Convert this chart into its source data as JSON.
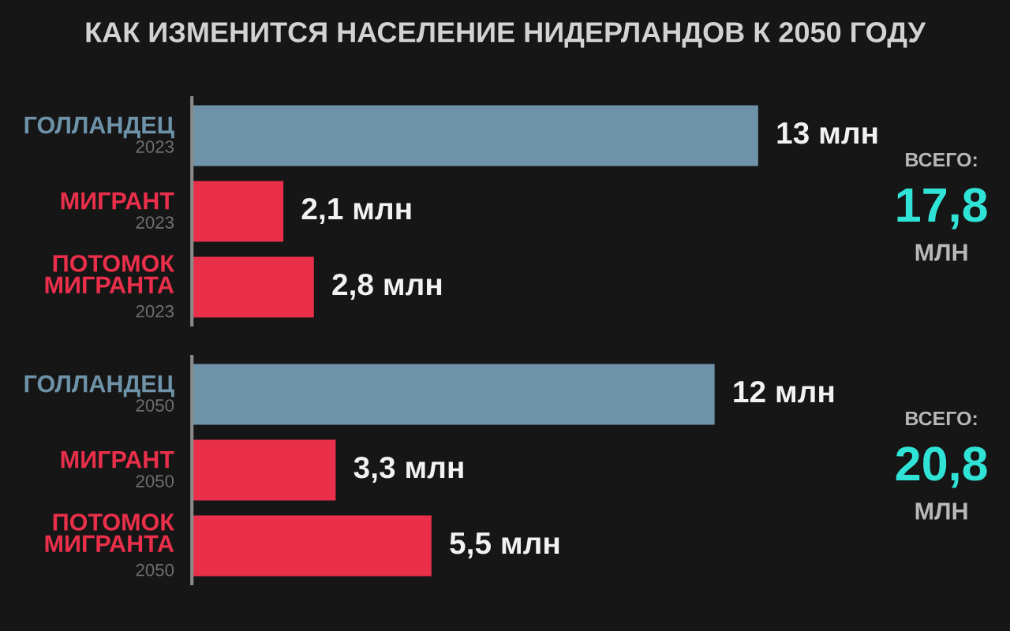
{
  "chart_data": [
    {
      "type": "bar",
      "orientation": "horizontal",
      "title": "КАК ИЗМЕНИТСЯ НАСЕЛЕНИЕ НИДЕРЛАНДОВ К 2050 ГОДУ",
      "categories": [
        "ГОЛЛАНДЕЦ\n2023",
        "МИГРАНТ\n2023",
        "ПОТОМОК\nМИГРАНТА\n2023"
      ],
      "values": [
        13,
        2.1,
        2.8
      ],
      "colors": [
        "#6e93a9",
        "#ea2f4b",
        "#ea2f4b"
      ],
      "value_labels": [
        "13 млн",
        "2,1 млн",
        "2,8 млн"
      ],
      "tick_labels": "y",
      "annotations": [
        "ВСЕГО:",
        "17,8",
        "МЛН"
      ]
    },
    {
      "type": "bar",
      "orientation": "horizontal",
      "categories": [
        "ГОЛЛАНДЕЦ\n2050",
        "МИГРАНТ\n2050",
        "ПОТОМОК\nМИГРАНТА\n2050"
      ],
      "values": [
        12,
        3.3,
        5.5
      ],
      "colors": [
        "#6e93a9",
        "#ea2f4b",
        "#ea2f4b"
      ],
      "value_labels": [
        "12 млн",
        "3,3 млн",
        "5,5 млн"
      ],
      "tick_labels": "y",
      "annotations": [
        "ВСЕГО:",
        "20,8",
        "МЛН"
      ]
    }
  ]
}
